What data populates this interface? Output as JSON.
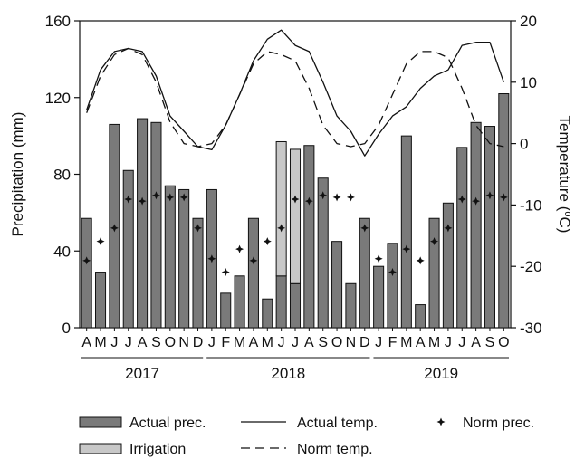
{
  "chart_data": {
    "type": "bar",
    "months": [
      "A",
      "M",
      "J",
      "J",
      "A",
      "S",
      "O",
      "N",
      "D",
      "J",
      "F",
      "M",
      "A",
      "M",
      "J",
      "J",
      "A",
      "S",
      "O",
      "N",
      "D",
      "J",
      "F",
      "M",
      "A",
      "M",
      "J",
      "J",
      "A",
      "S",
      "O"
    ],
    "years": [
      {
        "label": "2017",
        "start": 0,
        "end": 8
      },
      {
        "label": "2018",
        "start": 9,
        "end": 20
      },
      {
        "label": "2019",
        "start": 21,
        "end": 30
      }
    ],
    "ylabel": "Precipitation (mm)",
    "y2label": "Temperature (°C)",
    "ylim": [
      0,
      160
    ],
    "yticks": [
      0,
      40,
      80,
      120,
      160
    ],
    "y2lim": [
      -30,
      20
    ],
    "y2ticks": [
      -30,
      -20,
      -10,
      0,
      10,
      20
    ],
    "series": [
      {
        "name": "Actual prec.",
        "kind": "bar",
        "color": "#7a7a7a",
        "values": [
          57,
          29,
          106,
          82,
          109,
          107,
          74,
          72,
          57,
          72,
          18,
          27,
          57,
          15,
          27,
          23,
          95,
          78,
          45,
          23,
          57,
          32,
          44,
          100,
          12,
          57,
          65,
          94,
          107,
          105,
          122
        ]
      },
      {
        "name": "Irrigation",
        "kind": "bar-stacked",
        "color": "#c8c8c8",
        "values": [
          0,
          0,
          0,
          0,
          0,
          0,
          0,
          0,
          0,
          0,
          0,
          0,
          0,
          0,
          70,
          70,
          0,
          0,
          0,
          0,
          0,
          0,
          0,
          0,
          0,
          0,
          0,
          0,
          0,
          0,
          0
        ]
      },
      {
        "name": "Norm prec.",
        "kind": "marker",
        "color": "#111111",
        "values": [
          35,
          45,
          52,
          67,
          66,
          69,
          68,
          68,
          52,
          36,
          29,
          41,
          35,
          45,
          52,
          67,
          66,
          69,
          68,
          68,
          52,
          36,
          29,
          41,
          35,
          45,
          52,
          67,
          66,
          69,
          68
        ]
      },
      {
        "name": "Actual temp.",
        "kind": "line",
        "axis": "right",
        "dash": "",
        "values": [
          5.5,
          12,
          15,
          15.5,
          15,
          11,
          4.5,
          2,
          -0.5,
          -1,
          3,
          8,
          13.5,
          17,
          18.5,
          16,
          15,
          10,
          4.5,
          2,
          -2,
          1.5,
          4.5,
          6,
          9,
          11,
          12,
          16,
          16.5,
          16.5,
          10
        ]
      },
      {
        "name": "Norm temp.",
        "kind": "line",
        "axis": "right",
        "dash": "10,6",
        "values": [
          5,
          11,
          14.5,
          15.5,
          14.5,
          10,
          3.5,
          0,
          -0.5,
          0,
          3,
          8,
          13,
          15,
          14.5,
          13.5,
          9,
          3,
          0,
          -0.5,
          0,
          3,
          8,
          13,
          15,
          15,
          14,
          9,
          3,
          0,
          -0.5
        ]
      }
    ],
    "legend": {
      "placement": "bottom",
      "items": [
        {
          "label": "Actual prec.",
          "symbol": "bar",
          "color": "#7a7a7a"
        },
        {
          "label": "Actual temp.",
          "symbol": "line",
          "dash": ""
        },
        {
          "label": "Norm prec.",
          "symbol": "marker"
        },
        {
          "label": "Irrigation",
          "symbol": "bar",
          "color": "#c8c8c8"
        },
        {
          "label": "Norm temp.",
          "symbol": "line",
          "dash": "10,6"
        }
      ]
    }
  }
}
